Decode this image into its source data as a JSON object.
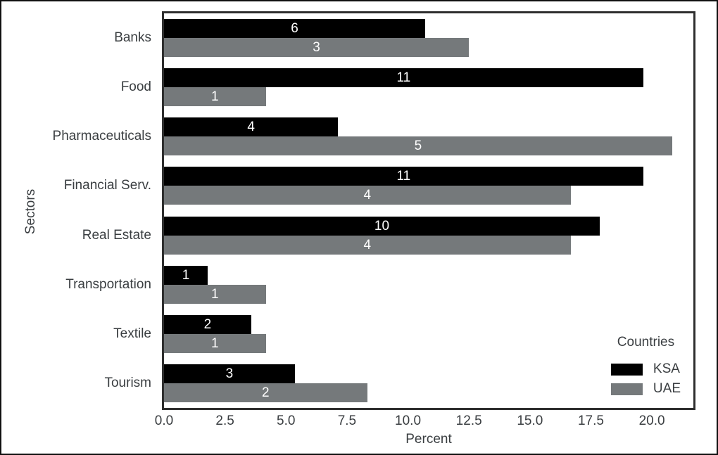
{
  "figure": {
    "background": "#ffffff",
    "border_color": "#111111",
    "spine_color": "#2e2e2e",
    "axis_text_color": "#3a3e41"
  },
  "chart_data": {
    "type": "bar",
    "orientation": "horizontal",
    "title": "",
    "xlabel": "Percent",
    "ylabel": "Sectors",
    "categories": [
      "Banks",
      "Food",
      "Pharmaceuticals",
      "Financial Serv.",
      "Real Estate",
      "Transportation",
      "Textile",
      "Tourism"
    ],
    "series": [
      {
        "name": "KSA",
        "color": "#000000",
        "counts": [
          6,
          11,
          4,
          11,
          10,
          1,
          2,
          3
        ],
        "percent_values": [
          10.71,
          19.64,
          7.14,
          19.64,
          17.86,
          1.79,
          3.57,
          5.36
        ]
      },
      {
        "name": "UAE",
        "color": "#75797b",
        "counts": [
          3,
          1,
          5,
          4,
          4,
          1,
          1,
          2
        ],
        "percent_values": [
          12.5,
          4.17,
          20.83,
          16.67,
          16.67,
          4.17,
          4.17,
          8.33
        ]
      }
    ],
    "bar_label_color": "#ffffff",
    "xlim": [
      0,
      21.7
    ],
    "xtick_values": [
      0,
      2.5,
      5,
      7.5,
      10,
      12.5,
      15,
      17.5,
      20
    ],
    "xtick_labels": [
      "0.0",
      "2.5",
      "5.0",
      "7.5",
      "10.0",
      "12.5",
      "15.0",
      "17.5",
      "20.0"
    ],
    "grid": false,
    "legend": {
      "title": "Countries",
      "entries": [
        "KSA",
        "UAE"
      ],
      "position": "lower right"
    }
  }
}
